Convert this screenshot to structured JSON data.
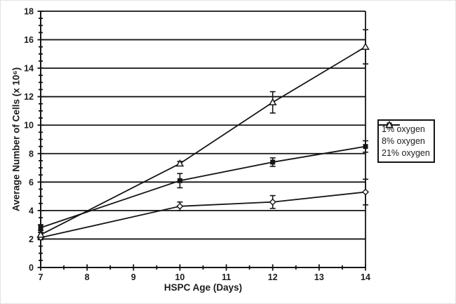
{
  "chart_data": {
    "type": "line",
    "title": "",
    "xlabel": "HSPC Age (Days)",
    "ylabel": "Average Number of Cells (x 10⁶)",
    "xlim": [
      7,
      14
    ],
    "ylim": [
      0,
      18
    ],
    "x_major_ticks": [
      7,
      8,
      9,
      10,
      11,
      12,
      13,
      14
    ],
    "y_major_ticks": [
      0,
      2,
      4,
      6,
      8,
      10,
      12,
      14,
      16,
      18
    ],
    "minor_tick_step": 0.5,
    "grid": "horizontal-major-only",
    "legend_position": "right-outside-middle",
    "line_color": "#151515",
    "x": [
      7,
      10,
      12,
      14
    ],
    "series": [
      {
        "name": "1% oxygen",
        "marker": "diamond-open",
        "color": "#151515",
        "values": [
          2.1,
          4.3,
          4.6,
          5.3
        ],
        "errors": [
          0.15,
          0.3,
          0.45,
          0.9
        ]
      },
      {
        "name": "8% oxygen",
        "marker": "square-filled",
        "color": "#151515",
        "values": [
          2.8,
          6.1,
          7.4,
          8.5
        ],
        "errors": [
          0.2,
          0.5,
          0.3,
          0.4
        ]
      },
      {
        "name": "21% oxygen",
        "marker": "triangle-open",
        "color": "#151515",
        "values": [
          2.3,
          7.3,
          11.6,
          15.5
        ],
        "errors": [
          0.15,
          0.15,
          0.75,
          1.2
        ]
      }
    ]
  }
}
